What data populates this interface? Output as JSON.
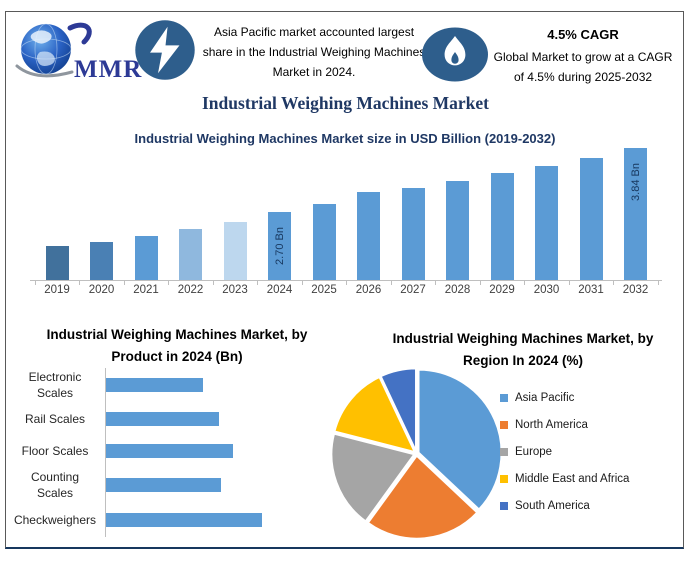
{
  "logo": {
    "text": "MMR"
  },
  "header": {
    "left_callout": {
      "icon": "lightning-icon",
      "text": "Asia Pacific market accounted largest share in the Industrial Weighing Machines Market in 2024."
    },
    "right_callout": {
      "icon": "flame-icon",
      "title": "4.5% CAGR",
      "text": "Global Market to grow at a CAGR of 4.5% during 2025-2032"
    }
  },
  "main_title": "Industrial Weighing Machines Market",
  "chart_data": [
    {
      "type": "bar",
      "title": "Industrial Weighing Machines Market size in USD Billion (2019-2032)",
      "ylabel": "USD Billion",
      "categories": [
        "2019",
        "2020",
        "2021",
        "2022",
        "2023",
        "2024",
        "2025",
        "2026",
        "2027",
        "2028",
        "2029",
        "2030",
        "2031",
        "2032"
      ],
      "values": [
        2.1,
        2.18,
        2.28,
        2.4,
        2.52,
        2.7,
        2.85,
        3.05,
        3.12,
        3.26,
        3.4,
        3.52,
        3.66,
        3.84
      ],
      "data_labels": {
        "2024": "2.70 Bn",
        "2032": "3.84 Bn"
      },
      "bar_colors": [
        "#41719C",
        "#4A80B4",
        "#5B9BD5",
        "#8FB8DE",
        "#BDD7EE",
        "#5B9BD5",
        "#5B9BD5",
        "#5B9BD5",
        "#5B9BD5",
        "#5B9BD5",
        "#5B9BD5",
        "#5B9BD5",
        "#5B9BD5",
        "#5B9BD5"
      ],
      "grid": false,
      "legend": "none"
    },
    {
      "type": "bar",
      "orientation": "horizontal",
      "title": "Industrial Weighing Machines Market, by Product in 2024 (Bn)",
      "categories": [
        "Electronic Scales",
        "Rail Scales",
        "Floor Scales",
        "Counting Scales",
        "Checkweighers"
      ],
      "values": [
        0.43,
        0.5,
        0.56,
        0.51,
        0.69
      ],
      "bar_color": "#5B9BD5",
      "grid": false,
      "legend": "none"
    },
    {
      "type": "pie",
      "title": "Industrial Weighing Machines Market, by Region In 2024 (%)",
      "categories": [
        "Asia Pacific",
        "North America",
        "Europe",
        "Middle East and Africa",
        "South America"
      ],
      "values": [
        37,
        23,
        19,
        14,
        7
      ],
      "colors": [
        "#5B9BD5",
        "#ED7D31",
        "#A5A5A5",
        "#FFC000",
        "#4472C4"
      ],
      "legend_position": "right"
    }
  ],
  "theme": {
    "title_color": "#1F3864",
    "icon_color": "#2E5E8C",
    "logo_color": "#2D3A96",
    "axis_color": "#BFBFBF",
    "axis_label_color": "#404040"
  }
}
